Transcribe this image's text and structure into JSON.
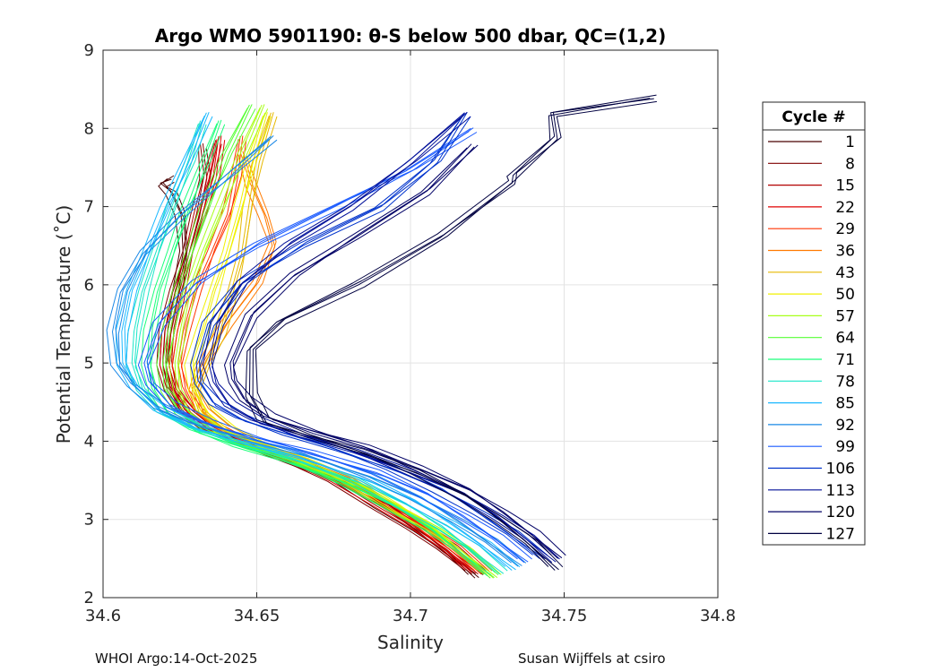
{
  "chart_data": {
    "type": "line",
    "title": "Argo WMO 5901190: θ-S below 500 dbar,  QC=(1,2)",
    "xlabel": "Salinity",
    "ylabel": "Potential Temperature (˚C)",
    "xlim": [
      34.6,
      34.8
    ],
    "ylim": [
      2,
      9
    ],
    "xticks": [
      34.6,
      34.65,
      34.7,
      34.75,
      34.8
    ],
    "xtick_labels": [
      "34.6",
      "34.65",
      "34.7",
      "34.75",
      "34.8"
    ],
    "yticks": [
      2,
      3,
      4,
      5,
      6,
      7,
      8,
      9
    ],
    "ytick_labels": [
      "2",
      "3",
      "4",
      "5",
      "6",
      "7",
      "8",
      "9"
    ],
    "grid": true,
    "legend": {
      "title": "Cycle #",
      "position": "outside-right",
      "entries": [
        "1",
        "8",
        "15",
        "22",
        "29",
        "36",
        "43",
        "50",
        "57",
        "64",
        "71",
        "78",
        "85",
        "92",
        "99",
        "106",
        "113",
        "120",
        "127"
      ],
      "colors": [
        "#4a0000",
        "#800000",
        "#b30000",
        "#e00000",
        "#ff3300",
        "#ff7a00",
        "#e6b800",
        "#f0f000",
        "#a8ff1a",
        "#55ff33",
        "#1aff7a",
        "#1ae6c8",
        "#1ab8ff",
        "#1a88e6",
        "#1a5aff",
        "#0033cc",
        "#000f99",
        "#000066",
        "#000040"
      ]
    },
    "series": [
      {
        "name": "1",
        "color": "#4a0000",
        "s": [
          34.721,
          34.712,
          34.702,
          34.69,
          34.677,
          34.66,
          34.645,
          34.634,
          34.627,
          34.622,
          34.62,
          34.621,
          34.624,
          34.626,
          34.625,
          34.622,
          34.619,
          34.622
        ],
        "t": [
          2.25,
          2.6,
          2.9,
          3.2,
          3.5,
          3.75,
          3.95,
          4.15,
          4.4,
          4.7,
          5.0,
          5.4,
          5.9,
          6.4,
          6.9,
          7.2,
          7.3,
          7.35
        ]
      },
      {
        "name": "8",
        "color": "#800000",
        "s": [
          34.72,
          34.71,
          34.7,
          34.688,
          34.675,
          34.658,
          34.644,
          34.633,
          34.626,
          34.621,
          34.619,
          34.62,
          34.623,
          34.627,
          34.63,
          34.633,
          34.632
        ],
        "t": [
          2.3,
          2.62,
          2.92,
          3.22,
          3.5,
          3.75,
          3.95,
          4.15,
          4.4,
          4.7,
          5.0,
          5.4,
          5.9,
          6.4,
          6.9,
          7.4,
          7.8
        ]
      },
      {
        "name": "15",
        "color": "#b30000",
        "s": [
          34.722,
          34.713,
          34.703,
          34.691,
          34.678,
          34.661,
          34.646,
          34.635,
          34.627,
          34.623,
          34.621,
          34.622,
          34.625,
          34.628,
          34.631,
          34.634,
          34.637
        ],
        "t": [
          2.3,
          2.62,
          2.92,
          3.22,
          3.5,
          3.75,
          3.95,
          4.15,
          4.4,
          4.7,
          5.0,
          5.4,
          5.9,
          6.4,
          6.9,
          7.4,
          7.85
        ]
      },
      {
        "name": "22",
        "color": "#e00000",
        "s": [
          34.72,
          34.711,
          34.701,
          34.689,
          34.676,
          34.659,
          34.645,
          34.634,
          34.627,
          34.622,
          34.62,
          34.621,
          34.624,
          34.628,
          34.632,
          34.636,
          34.638
        ],
        "t": [
          2.32,
          2.64,
          2.94,
          3.24,
          3.5,
          3.75,
          3.95,
          4.15,
          4.4,
          4.7,
          5.0,
          5.4,
          5.9,
          6.4,
          6.9,
          7.4,
          7.9
        ]
      },
      {
        "name": "29",
        "color": "#ff3300",
        "s": [
          34.723,
          34.714,
          34.704,
          34.692,
          34.679,
          34.662,
          34.648,
          34.637,
          34.63,
          34.626,
          34.624,
          34.626,
          34.63,
          34.635,
          34.64,
          34.643,
          34.645
        ],
        "t": [
          2.3,
          2.62,
          2.92,
          3.22,
          3.5,
          3.75,
          3.95,
          4.15,
          4.4,
          4.7,
          5.0,
          5.4,
          5.9,
          6.4,
          6.9,
          7.4,
          7.9
        ]
      },
      {
        "name": "36",
        "color": "#ff7a00",
        "s": [
          34.724,
          34.715,
          34.705,
          34.693,
          34.68,
          34.664,
          34.65,
          34.639,
          34.632,
          34.629,
          34.632,
          34.64,
          34.65,
          34.655,
          34.652,
          34.648,
          34.645
        ],
        "t": [
          2.3,
          2.62,
          2.92,
          3.22,
          3.5,
          3.75,
          3.95,
          4.15,
          4.4,
          4.7,
          5.0,
          5.5,
          6.0,
          6.5,
          6.9,
          7.3,
          7.7
        ]
      },
      {
        "name": "43",
        "color": "#e6b800",
        "s": [
          34.725,
          34.716,
          34.706,
          34.694,
          34.681,
          34.665,
          34.651,
          34.64,
          34.633,
          34.63,
          34.633,
          34.638,
          34.642,
          34.645,
          34.647,
          34.65,
          34.655
        ],
        "t": [
          2.28,
          2.6,
          2.9,
          3.2,
          3.48,
          3.73,
          3.93,
          4.13,
          4.38,
          4.68,
          5.0,
          5.4,
          5.9,
          6.4,
          7.0,
          7.6,
          8.2
        ]
      },
      {
        "name": "50",
        "color": "#f0f000",
        "s": [
          34.726,
          34.717,
          34.707,
          34.695,
          34.682,
          34.666,
          34.652,
          34.641,
          34.634,
          34.629,
          34.628,
          34.632,
          34.636,
          34.64,
          34.644,
          34.648,
          34.653
        ],
        "t": [
          2.28,
          2.6,
          2.9,
          3.2,
          3.48,
          3.73,
          3.93,
          4.13,
          4.38,
          4.68,
          5.0,
          5.4,
          5.9,
          6.4,
          7.0,
          7.6,
          8.2
        ]
      },
      {
        "name": "57",
        "color": "#a8ff1a",
        "s": [
          34.727,
          34.718,
          34.708,
          34.695,
          34.681,
          34.664,
          34.648,
          34.636,
          34.628,
          34.624,
          34.623,
          34.625,
          34.628,
          34.632,
          34.638,
          34.645,
          34.652
        ],
        "t": [
          2.25,
          2.57,
          2.88,
          3.18,
          3.46,
          3.72,
          3.92,
          4.12,
          4.38,
          4.68,
          5.0,
          5.4,
          5.9,
          6.4,
          7.0,
          7.7,
          8.3
        ]
      },
      {
        "name": "64",
        "color": "#55ff33",
        "s": [
          34.726,
          34.717,
          34.707,
          34.694,
          34.68,
          34.662,
          34.645,
          34.633,
          34.625,
          34.62,
          34.619,
          34.621,
          34.624,
          34.628,
          34.633,
          34.64,
          34.648
        ],
        "t": [
          2.25,
          2.57,
          2.88,
          3.18,
          3.46,
          3.72,
          3.92,
          4.12,
          4.38,
          4.68,
          5.0,
          5.4,
          5.9,
          6.4,
          7.0,
          7.7,
          8.3
        ]
      },
      {
        "name": "71",
        "color": "#1aff7a",
        "s": [
          34.725,
          34.716,
          34.706,
          34.693,
          34.678,
          34.66,
          34.642,
          34.63,
          34.621,
          34.616,
          34.614,
          34.615,
          34.618,
          34.622,
          34.627,
          34.633,
          34.638
        ],
        "t": [
          2.28,
          2.6,
          2.9,
          3.2,
          3.48,
          3.73,
          3.93,
          4.13,
          4.38,
          4.68,
          5.0,
          5.4,
          5.9,
          6.4,
          7.0,
          7.6,
          8.1
        ]
      },
      {
        "name": "78",
        "color": "#1ae6c8",
        "s": [
          34.729,
          34.72,
          34.71,
          34.697,
          34.682,
          34.663,
          34.644,
          34.63,
          34.619,
          34.612,
          34.609,
          34.61,
          34.613,
          34.617,
          34.622,
          34.628,
          34.632
        ],
        "t": [
          2.3,
          2.62,
          2.92,
          3.22,
          3.5,
          3.75,
          3.95,
          4.15,
          4.4,
          4.7,
          5.0,
          5.4,
          5.9,
          6.4,
          7.0,
          7.6,
          8.1
        ]
      },
      {
        "name": "85",
        "color": "#1ab8ff",
        "s": [
          34.733,
          34.724,
          34.713,
          34.7,
          34.685,
          34.665,
          34.645,
          34.63,
          34.618,
          34.61,
          34.606,
          34.606,
          34.609,
          34.614,
          34.62,
          34.627,
          34.634
        ],
        "t": [
          2.35,
          2.66,
          2.96,
          3.26,
          3.52,
          3.77,
          3.97,
          4.17,
          4.42,
          4.72,
          5.0,
          5.4,
          5.9,
          6.4,
          7.0,
          7.6,
          8.2
        ]
      },
      {
        "name": "92",
        "color": "#1a88e6",
        "s": [
          34.735,
          34.726,
          34.715,
          34.702,
          34.687,
          34.667,
          34.647,
          34.631,
          34.618,
          34.609,
          34.604,
          34.603,
          34.606,
          34.613,
          34.625,
          34.64,
          34.655
        ],
        "t": [
          2.4,
          2.7,
          3.0,
          3.3,
          3.55,
          3.8,
          4.0,
          4.2,
          4.45,
          4.75,
          5.0,
          5.4,
          5.9,
          6.4,
          6.9,
          7.4,
          7.9
        ]
      },
      {
        "name": "99",
        "color": "#1a5aff",
        "s": [
          34.737,
          34.728,
          34.717,
          34.704,
          34.689,
          34.669,
          34.649,
          34.634,
          34.622,
          34.615,
          34.613,
          34.618,
          34.63,
          34.65,
          34.675,
          34.7,
          34.72
        ],
        "t": [
          2.45,
          2.75,
          3.05,
          3.35,
          3.6,
          3.82,
          4.02,
          4.22,
          4.47,
          4.77,
          5.0,
          5.5,
          6.0,
          6.5,
          7.0,
          7.5,
          8.0
        ]
      },
      {
        "name": "106",
        "color": "#0033cc",
        "s": [
          34.742,
          34.733,
          34.722,
          34.709,
          34.694,
          34.676,
          34.658,
          34.645,
          34.636,
          34.631,
          34.63,
          34.634,
          34.645,
          34.665,
          34.69,
          34.708,
          34.718
        ],
        "t": [
          2.5,
          2.8,
          3.1,
          3.4,
          3.65,
          3.88,
          4.08,
          4.28,
          4.5,
          4.78,
          5.0,
          5.5,
          6.0,
          6.5,
          7.0,
          7.6,
          8.2
        ]
      },
      {
        "name": "113",
        "color": "#000f99",
        "s": [
          34.746,
          34.738,
          34.728,
          34.716,
          34.7,
          34.682,
          34.664,
          34.65,
          34.641,
          34.636,
          34.634,
          34.637,
          34.645,
          34.66,
          34.68,
          34.7,
          34.718
        ],
        "t": [
          2.45,
          2.75,
          3.05,
          3.35,
          3.6,
          3.85,
          4.05,
          4.25,
          4.48,
          4.76,
          5.0,
          5.5,
          6.0,
          6.5,
          7.0,
          7.6,
          8.2
        ]
      },
      {
        "name": "120",
        "color": "#000066",
        "s": [
          34.748,
          34.74,
          34.73,
          34.718,
          34.703,
          34.686,
          34.668,
          34.654,
          34.646,
          34.642,
          34.641,
          34.648,
          34.662,
          34.682,
          34.705,
          34.72
        ],
        "t": [
          2.5,
          2.8,
          3.1,
          3.4,
          3.65,
          3.9,
          4.1,
          4.3,
          4.55,
          4.8,
          5.0,
          5.6,
          6.1,
          6.6,
          7.2,
          7.8
        ]
      },
      {
        "name": "127",
        "color": "#000040",
        "s": [
          34.747,
          34.739,
          34.729,
          34.717,
          34.702,
          34.684,
          34.666,
          34.652,
          34.648,
          34.648,
          34.658,
          34.683,
          34.71,
          34.733,
          34.733,
          34.747,
          34.746,
          34.779
        ],
        "t": [
          2.35,
          2.68,
          3.0,
          3.32,
          3.6,
          3.85,
          4.05,
          4.25,
          4.6,
          5.2,
          5.55,
          6.0,
          6.6,
          7.3,
          7.4,
          7.9,
          8.2,
          8.38
        ]
      }
    ]
  },
  "footer": {
    "left": "WHOI Argo:14-Oct-2025",
    "right": "Susan Wijffels at csiro"
  }
}
